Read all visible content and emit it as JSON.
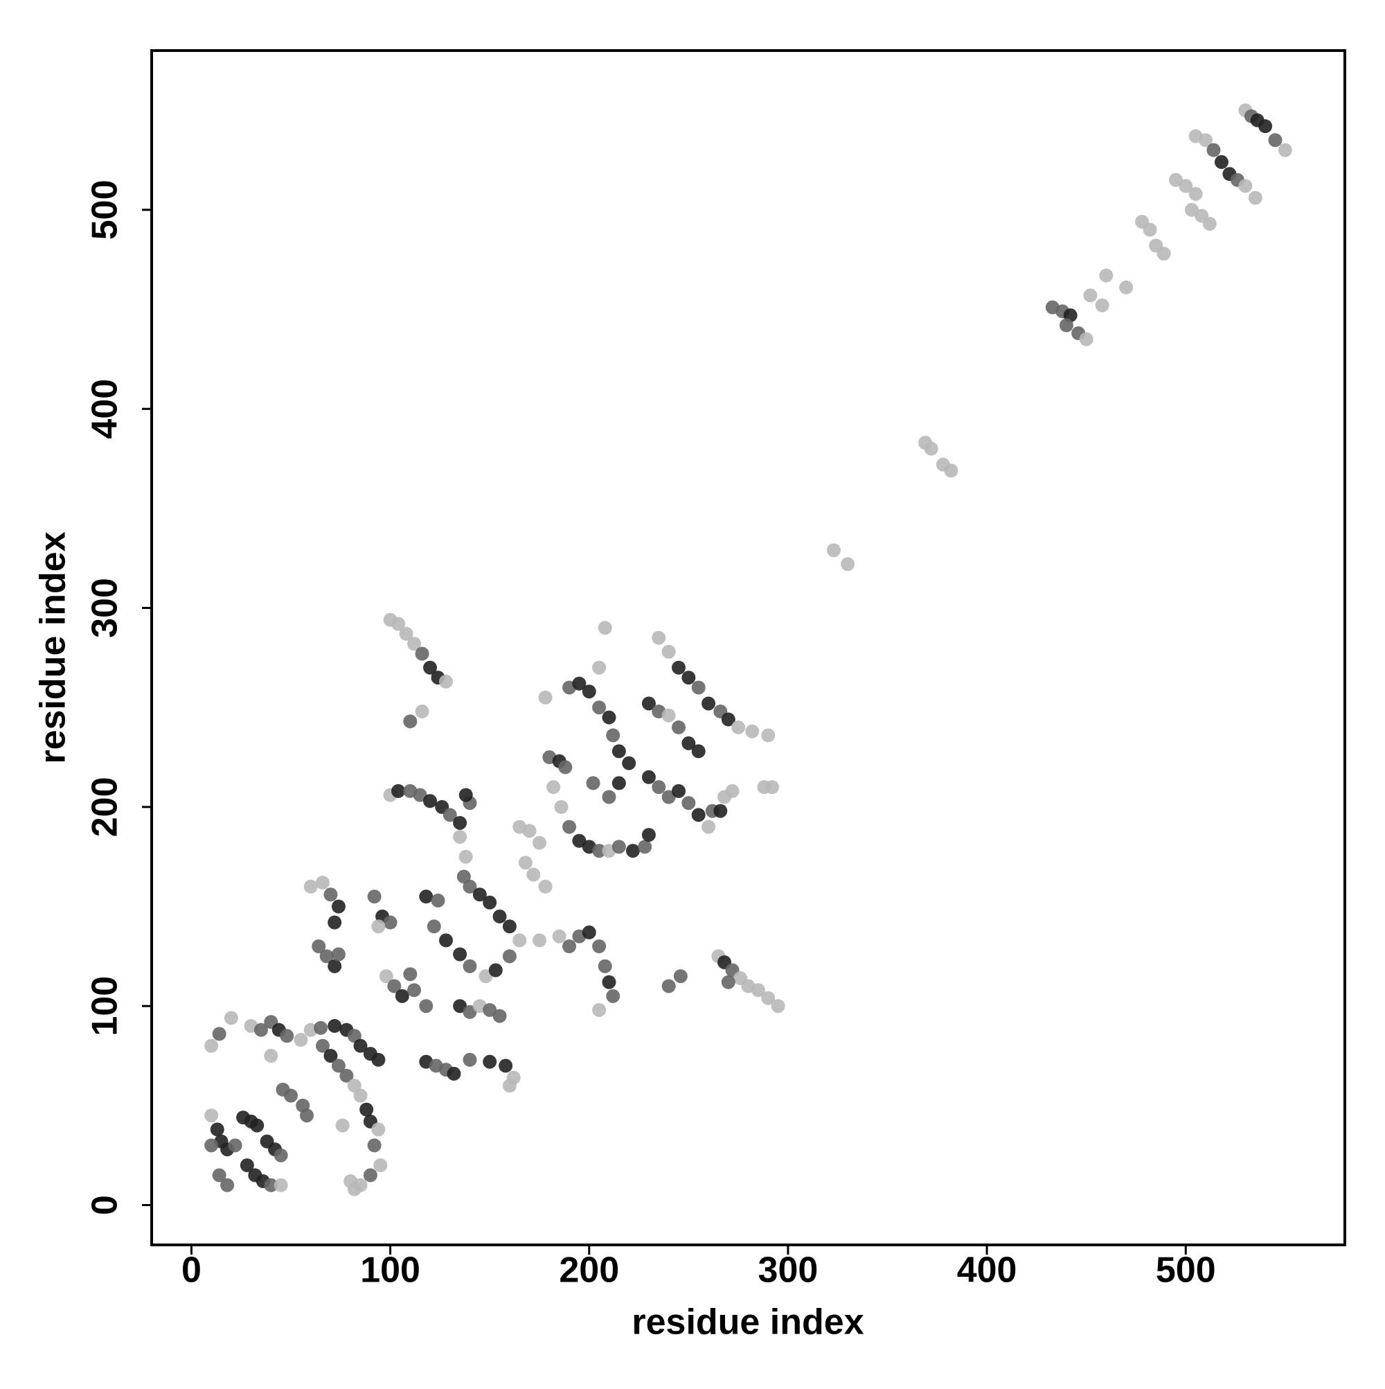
{
  "chart_data": {
    "type": "scatter",
    "x_label": "residue index",
    "y_label": "residue index",
    "xlim": [
      -20,
      580
    ],
    "ylim": [
      -20,
      580
    ],
    "xticks": [
      0,
      100,
      200,
      300,
      400,
      500
    ],
    "yticks": [
      0,
      100,
      200,
      300,
      400,
      500
    ],
    "x": [
      530,
      533,
      536,
      540,
      545,
      550,
      505,
      510,
      514,
      518,
      522,
      526,
      530,
      535,
      495,
      500,
      505,
      503,
      508,
      512,
      478,
      482,
      485,
      489,
      460,
      470,
      452,
      458,
      433,
      438,
      442,
      440,
      446,
      450,
      369,
      372,
      378,
      382,
      323,
      330,
      100,
      104,
      108,
      112,
      116,
      120,
      124,
      128,
      110,
      116,
      100,
      104,
      110,
      115,
      120,
      126,
      130,
      135,
      140,
      138,
      135,
      138,
      137,
      140,
      145,
      150,
      155,
      160,
      165,
      118,
      124,
      122,
      128,
      135,
      140,
      148,
      153,
      160,
      135,
      140,
      145,
      150,
      155,
      118,
      123,
      128,
      132,
      140,
      150,
      158,
      162,
      160,
      98,
      102,
      106,
      112,
      118,
      110,
      92,
      96,
      100,
      94,
      60,
      66,
      70,
      74,
      72,
      64,
      68,
      72,
      74,
      165,
      170,
      175,
      168,
      172,
      178,
      180,
      185,
      188,
      182,
      186,
      190,
      195,
      200,
      205,
      210,
      178,
      190,
      195,
      200,
      205,
      210,
      212,
      215,
      220,
      215,
      210,
      202,
      208,
      205,
      222,
      228,
      230,
      215,
      230,
      235,
      240,
      245,
      250,
      255,
      235,
      240,
      245,
      250,
      255,
      260,
      266,
      270,
      275,
      282,
      290,
      230,
      235,
      240,
      245,
      250,
      255,
      260,
      262,
      266,
      268,
      272,
      288,
      292,
      195,
      200,
      205,
      208,
      210,
      212,
      205,
      185,
      175,
      190,
      240,
      246,
      265,
      268,
      272,
      276,
      280,
      285,
      290,
      295,
      270,
      10,
      14,
      20,
      30,
      35,
      40,
      44,
      48,
      55,
      60,
      65,
      72,
      78,
      82,
      85,
      90,
      94,
      10,
      13,
      15,
      18,
      22,
      26,
      30,
      33,
      38,
      42,
      45,
      28,
      32,
      36,
      40,
      45,
      10,
      14,
      18,
      46,
      50,
      56,
      58,
      66,
      70,
      74,
      78,
      82,
      85,
      88,
      90,
      94,
      92,
      95,
      90,
      85,
      80,
      82,
      76,
      40
    ],
    "values": [
      550,
      547,
      545,
      542,
      535,
      530,
      537,
      535,
      530,
      524,
      518,
      515,
      512,
      506,
      515,
      512,
      508,
      500,
      497,
      493,
      494,
      490,
      482,
      478,
      467,
      461,
      457,
      452,
      451,
      449,
      447,
      442,
      438,
      435,
      383,
      380,
      372,
      369,
      329,
      322,
      294,
      292,
      287,
      282,
      277,
      270,
      265,
      263,
      243,
      248,
      206,
      208,
      208,
      206,
      203,
      200,
      196,
      192,
      202,
      206,
      185,
      175,
      165,
      160,
      156,
      152,
      145,
      140,
      133,
      155,
      153,
      140,
      133,
      126,
      120,
      115,
      118,
      125,
      100,
      97,
      100,
      98,
      95,
      72,
      70,
      68,
      66,
      73,
      72,
      70,
      64,
      60,
      115,
      110,
      105,
      108,
      100,
      116,
      155,
      145,
      142,
      140,
      160,
      162,
      156,
      150,
      142,
      130,
      125,
      120,
      126,
      190,
      188,
      182,
      172,
      166,
      160,
      225,
      223,
      220,
      210,
      200,
      190,
      183,
      180,
      178,
      178,
      255,
      260,
      262,
      258,
      250,
      245,
      236,
      228,
      222,
      212,
      205,
      212,
      290,
      270,
      178,
      180,
      186,
      180,
      252,
      248,
      246,
      240,
      232,
      228,
      285,
      278,
      270,
      265,
      260,
      252,
      248,
      244,
      240,
      238,
      236,
      215,
      210,
      205,
      208,
      202,
      196,
      190,
      198,
      198,
      205,
      208,
      210,
      210,
      135,
      137,
      130,
      120,
      112,
      105,
      98,
      135,
      133,
      130,
      110,
      115,
      125,
      122,
      118,
      114,
      110,
      108,
      104,
      100,
      112,
      80,
      86,
      94,
      90,
      88,
      92,
      88,
      85,
      83,
      88,
      89,
      90,
      88,
      85,
      80,
      76,
      73,
      45,
      38,
      32,
      28,
      30,
      44,
      42,
      40,
      32,
      28,
      25,
      20,
      15,
      12,
      10,
      10,
      30,
      15,
      10,
      58,
      55,
      50,
      45,
      80,
      75,
      70,
      65,
      60,
      55,
      48,
      42,
      38,
      30,
      20,
      15,
      10,
      12,
      8,
      40,
      75
    ],
    "colors": [
      "#b8b8b8",
      "#666666",
      "#222222",
      "#222222",
      "#666666",
      "#b8b8b8",
      "#b8b8b8",
      "#b8b8b8",
      "#666666",
      "#222222",
      "#222222",
      "#666666",
      "#b8b8b8",
      "#b8b8b8",
      "#b8b8b8",
      "#b8b8b8",
      "#b8b8b8",
      "#b8b8b8",
      "#b8b8b8",
      "#b8b8b8",
      "#b8b8b8",
      "#b8b8b8",
      "#b8b8b8",
      "#b8b8b8",
      "#b8b8b8",
      "#b8b8b8",
      "#b8b8b8",
      "#b8b8b8",
      "#666666",
      "#666666",
      "#222222",
      "#666666",
      "#666666",
      "#b8b8b8",
      "#b8b8b8",
      "#b8b8b8",
      "#b8b8b8",
      "#b8b8b8",
      "#b8b8b8",
      "#b8b8b8",
      "#b8b8b8",
      "#b8b8b8",
      "#b8b8b8",
      "#b8b8b8",
      "#666666",
      "#222222",
      "#222222",
      "#b8b8b8",
      "#666666",
      "#b8b8b8",
      "#b8b8b8",
      "#222222",
      "#666666",
      "#666666",
      "#222222",
      "#222222",
      "#666666",
      "#222222",
      "#666666",
      "#222222",
      "#b8b8b8",
      "#b8b8b8",
      "#666666",
      "#666666",
      "#222222",
      "#222222",
      "#222222",
      "#222222",
      "#b8b8b8",
      "#222222",
      "#666666",
      "#666666",
      "#222222",
      "#222222",
      "#666666",
      "#b8b8b8",
      "#222222",
      "#666666",
      "#222222",
      "#666666",
      "#b8b8b8",
      "#666666",
      "#666666",
      "#222222",
      "#666666",
      "#666666",
      "#222222",
      "#666666",
      "#222222",
      "#222222",
      "#b8b8b8",
      "#b8b8b8",
      "#b8b8b8",
      "#666666",
      "#222222",
      "#666666",
      "#666666",
      "#666666",
      "#666666",
      "#222222",
      "#666666",
      "#b8b8b8",
      "#b8b8b8",
      "#b8b8b8",
      "#666666",
      "#222222",
      "#222222",
      "#666666",
      "#666666",
      "#222222",
      "#666666",
      "#b8b8b8",
      "#b8b8b8",
      "#b8b8b8",
      "#b8b8b8",
      "#b8b8b8",
      "#b8b8b8",
      "#666666",
      "#222222",
      "#666666",
      "#b8b8b8",
      "#b8b8b8",
      "#666666",
      "#222222",
      "#222222",
      "#666666",
      "#b8b8b8",
      "#b8b8b8",
      "#666666",
      "#222222",
      "#222222",
      "#666666",
      "#222222",
      "#666666",
      "#222222",
      "#222222",
      "#222222",
      "#666666",
      "#666666",
      "#b8b8b8",
      "#b8b8b8",
      "#222222",
      "#666666",
      "#222222",
      "#666666",
      "#222222",
      "#666666",
      "#b8b8b8",
      "#666666",
      "#222222",
      "#222222",
      "#b8b8b8",
      "#b8b8b8",
      "#222222",
      "#222222",
      "#666666",
      "#222222",
      "#666666",
      "#222222",
      "#b8b8b8",
      "#b8b8b8",
      "#b8b8b8",
      "#222222",
      "#666666",
      "#666666",
      "#222222",
      "#666666",
      "#222222",
      "#b8b8b8",
      "#666666",
      "#222222",
      "#b8b8b8",
      "#b8b8b8",
      "#b8b8b8",
      "#b8b8b8",
      "#666666",
      "#222222",
      "#666666",
      "#666666",
      "#222222",
      "#666666",
      "#b8b8b8",
      "#b8b8b8",
      "#b8b8b8",
      "#666666",
      "#666666",
      "#666666",
      "#b8b8b8",
      "#222222",
      "#666666",
      "#b8b8b8",
      "#b8b8b8",
      "#b8b8b8",
      "#b8b8b8",
      "#b8b8b8",
      "#666666",
      "#b8b8b8",
      "#666666",
      "#b8b8b8",
      "#b8b8b8",
      "#666666",
      "#666666",
      "#222222",
      "#666666",
      "#b8b8b8",
      "#b8b8b8",
      "#666666",
      "#222222",
      "#222222",
      "#666666",
      "#222222",
      "#222222",
      "#222222",
      "#b8b8b8",
      "#222222",
      "#222222",
      "#222222",
      "#666666",
      "#222222",
      "#222222",
      "#222222",
      "#222222",
      "#222222",
      "#666666",
      "#222222",
      "#222222",
      "#222222",
      "#666666",
      "#b8b8b8",
      "#666666",
      "#666666",
      "#666666",
      "#666666",
      "#666666",
      "#666666",
      "#666666",
      "#666666",
      "#222222",
      "#666666",
      "#666666",
      "#b8b8b8",
      "#b8b8b8",
      "#222222",
      "#222222",
      "#b8b8b8",
      "#666666",
      "#b8b8b8",
      "#666666",
      "#b8b8b8",
      "#b8b8b8",
      "#b8b8b8",
      "#b8b8b8",
      "#b8b8b8"
    ]
  }
}
